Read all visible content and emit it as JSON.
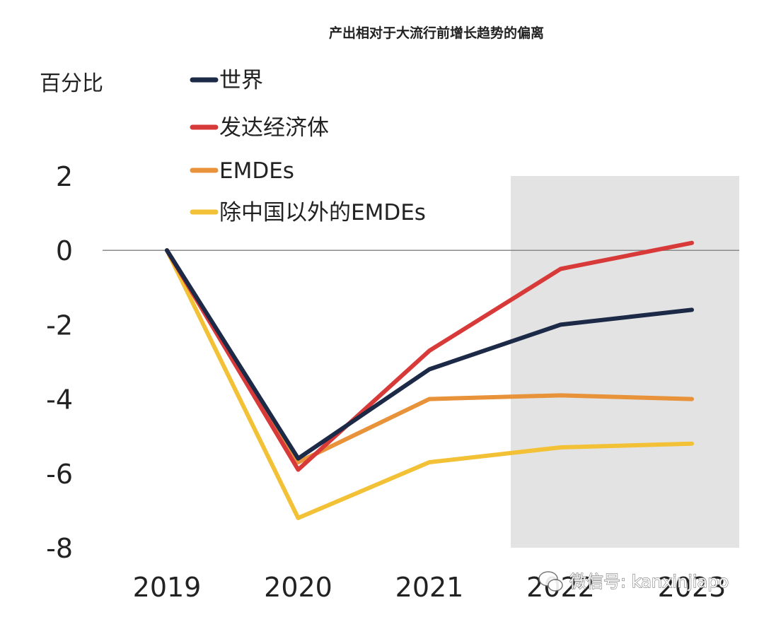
{
  "chart_data": {
    "type": "line",
    "title": "产出相对于大流行前增长趋势的偏离",
    "ylabel": "百分比",
    "xlabel": "",
    "categories": [
      "2019",
      "2020",
      "2021",
      "2022",
      "2023"
    ],
    "ylim": [
      -8,
      2
    ],
    "yticks": [
      2,
      0,
      -2,
      -4,
      -6,
      -8
    ],
    "ytick_labels": [
      "2",
      "0",
      "-2",
      "-4",
      "-6",
      "-8"
    ],
    "forecast_shading": [
      "2022",
      "2023"
    ],
    "legend_position": "top-left",
    "series": [
      {
        "name": "世界",
        "color": "#1c2a48",
        "values": [
          0,
          -5.6,
          -3.2,
          -2.0,
          -1.6
        ]
      },
      {
        "name": "发达经济体",
        "color": "#d83a3a",
        "values": [
          0,
          -5.9,
          -2.7,
          -0.5,
          0.2
        ]
      },
      {
        "name": "EMDEs",
        "color": "#e8923a",
        "values": [
          0,
          -5.7,
          -4.0,
          -3.9,
          -4.0
        ]
      },
      {
        "name": "除中国以外的EMDEs",
        "color": "#f2c136",
        "values": [
          0,
          -7.2,
          -5.7,
          -5.3,
          -5.2
        ]
      }
    ]
  },
  "watermark": {
    "text": "微信号: kanxinjiapo",
    "icon": "wechat-icon"
  }
}
